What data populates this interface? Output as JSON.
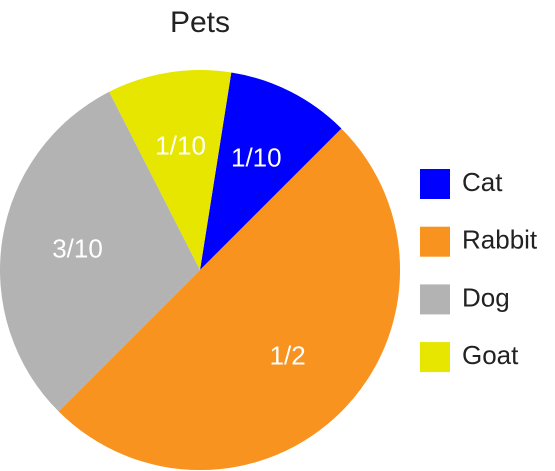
{
  "chart_data": {
    "type": "pie",
    "title": "Pets",
    "categories": [
      "Cat",
      "Rabbit",
      "Dog",
      "Goat"
    ],
    "values": [
      0.1,
      0.5,
      0.3,
      0.1
    ],
    "value_labels": [
      "1/10",
      "1/2",
      "3/10",
      "1/10"
    ],
    "colors": [
      "#0000ff",
      "#f7931e",
      "#b3b3b3",
      "#e6e600"
    ],
    "legend": "right"
  }
}
